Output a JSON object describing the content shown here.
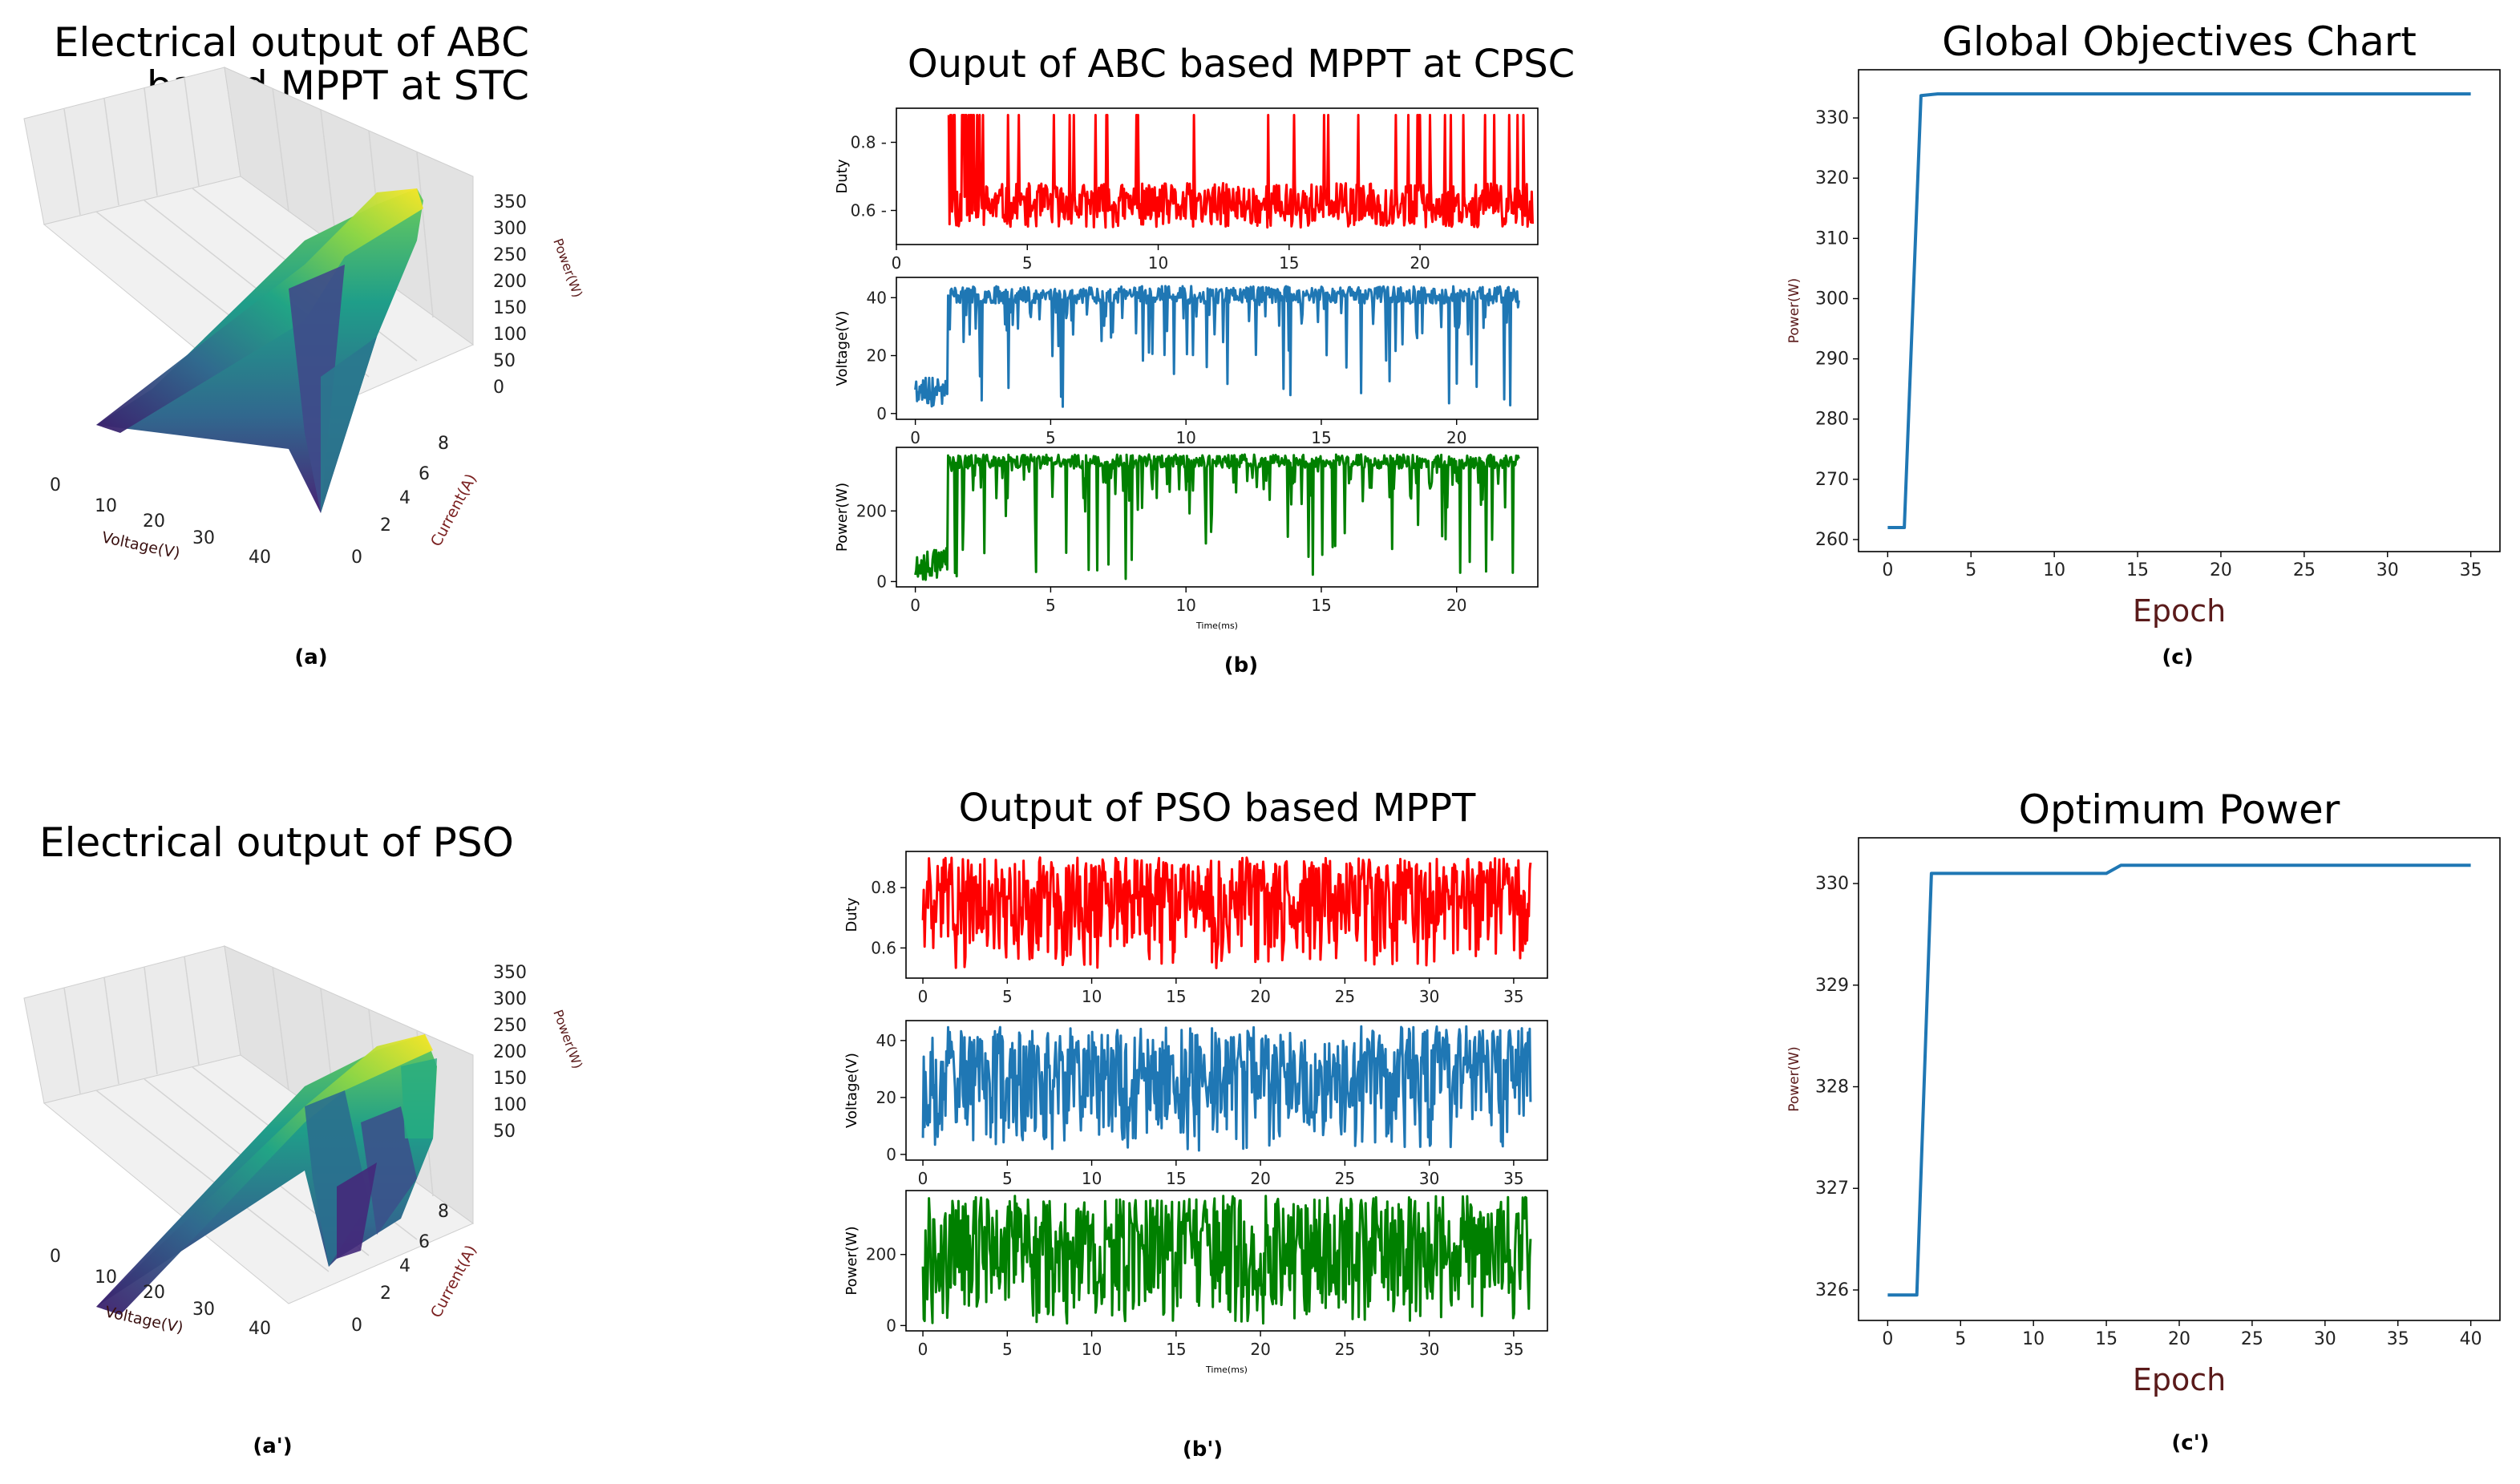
{
  "panels": {
    "a": {
      "title_line1": "Electrical output of ABC",
      "title_line2": "based MPPT at STC",
      "caption": "(a)",
      "xlabel": "Voltage(V)",
      "ylabel": "Current(A)",
      "zlabel": "Power(W)",
      "xticks": [
        "0",
        "10",
        "20",
        "30",
        "40"
      ],
      "yticks": [
        "0",
        "2",
        "4",
        "6",
        "8"
      ],
      "zticks": [
        "0",
        "50",
        "100",
        "150",
        "200",
        "250",
        "300",
        "350"
      ]
    },
    "a2": {
      "title": "Electrical output of PSO",
      "caption": "(a')",
      "xlabel": "Voltage(V)",
      "ylabel": "Current(A)",
      "zlabel": "Power(W)",
      "xticks": [
        "0",
        "10",
        "20",
        "30",
        "40"
      ],
      "yticks": [
        "0",
        "2",
        "4",
        "6",
        "8"
      ],
      "zticks": [
        "50",
        "100",
        "150",
        "200",
        "250",
        "300",
        "350"
      ]
    },
    "b": {
      "title": "Ouput of ABC based MPPT at CPSC",
      "caption": "(b)"
    },
    "b2": {
      "title": "Output of PSO based MPPT",
      "caption": "(b')"
    },
    "c": {
      "caption": "(c)"
    },
    "c2": {
      "caption": "(c')"
    }
  },
  "chart_data": [
    {
      "id": "b-duty",
      "type": "line",
      "title": "",
      "xlabel": "",
      "ylabel": "Duty",
      "xlim": [
        0,
        24.5
      ],
      "ylim": [
        0.5,
        0.9
      ],
      "xticks": [
        0,
        5,
        10,
        15,
        20
      ],
      "yticks": [
        0.6,
        0.8
      ],
      "ytick_labels": [
        "0.6 -",
        "0.8 -"
      ],
      "xtick_labels": [
        "0",
        "5",
        "10",
        "15",
        "20"
      ],
      "color": "#ff0000",
      "series_model": {
        "t_start": 2.0,
        "t_end": 24.3,
        "base_low": 0.55,
        "base_high": 0.68,
        "spike": 0.88,
        "seed": 11
      }
    },
    {
      "id": "b-voltage",
      "type": "line",
      "title": "",
      "xlabel": "",
      "ylabel": "Voltage(V)",
      "xlim": [
        -0.7,
        23.0
      ],
      "ylim": [
        -2,
        47
      ],
      "xticks": [
        0,
        5,
        10,
        15,
        20
      ],
      "yticks": [
        0,
        20,
        40
      ],
      "xtick_labels": [
        "0",
        "5",
        "10",
        "15",
        "20"
      ],
      "ytick_labels": [
        "0",
        "20",
        "40"
      ],
      "color": "#1f77b4",
      "series_model": {
        "t_start": 0.0,
        "t_end": 22.3,
        "base_low": 38,
        "base_high": 44,
        "dip_min": 2,
        "seed": 23
      }
    },
    {
      "id": "b-power",
      "type": "line",
      "title": "",
      "xlabel": "Time(ms)",
      "ylabel": "Power(W)",
      "xlim": [
        -0.7,
        23.0
      ],
      "ylim": [
        -15,
        380
      ],
      "xticks": [
        0,
        5,
        10,
        15,
        20
      ],
      "yticks": [
        0,
        200
      ],
      "xtick_labels": [
        "0",
        "5",
        "10",
        "15",
        "20"
      ],
      "ytick_labels": [
        "0",
        "200"
      ],
      "color": "#008000",
      "series_model": {
        "t_start": 0.0,
        "t_end": 22.3,
        "base_low": 320,
        "base_high": 360,
        "dip_min": 5,
        "seed": 37
      }
    },
    {
      "id": "b2-duty",
      "type": "line",
      "title": "",
      "xlabel": "",
      "ylabel": "Duty",
      "xlim": [
        -1.0,
        37.0
      ],
      "ylim": [
        0.5,
        0.92
      ],
      "xticks": [
        0,
        5,
        10,
        15,
        20,
        25,
        30,
        35
      ],
      "yticks": [
        0.6,
        0.8
      ],
      "xtick_labels": [
        "0",
        "5",
        "10",
        "15",
        "20",
        "25",
        "30",
        "35"
      ],
      "ytick_labels": [
        "0.6",
        "0.8"
      ],
      "color": "#ff0000",
      "series_model": {
        "t_start": 0.0,
        "t_end": 36.0,
        "min": 0.53,
        "max": 0.9,
        "seed": 41
      }
    },
    {
      "id": "b2-voltage",
      "type": "line",
      "title": "",
      "xlabel": "",
      "ylabel": "Voltage(V)",
      "xlim": [
        -1.0,
        37.0
      ],
      "ylim": [
        -2,
        47
      ],
      "xticks": [
        0,
        5,
        10,
        15,
        20,
        25,
        30,
        35
      ],
      "yticks": [
        0,
        20,
        40
      ],
      "xtick_labels": [
        "0",
        "5",
        "10",
        "15",
        "20",
        "25",
        "30",
        "35"
      ],
      "ytick_labels": [
        "0",
        "20",
        "40"
      ],
      "color": "#1f77b4",
      "series_model": {
        "t_start": 0.0,
        "t_end": 36.0,
        "min": 1,
        "max": 45,
        "seed": 53
      }
    },
    {
      "id": "b2-power",
      "type": "line",
      "title": "",
      "xlabel": "Time(ms)",
      "ylabel": "Power(W)",
      "xlim": [
        -1.0,
        37.0
      ],
      "ylim": [
        -15,
        380
      ],
      "xticks": [
        0,
        5,
        10,
        15,
        20,
        25,
        30,
        35
      ],
      "yticks": [
        0,
        200
      ],
      "xtick_labels": [
        "0",
        "5",
        "10",
        "15",
        "20",
        "25",
        "30",
        "35"
      ],
      "ytick_labels": [
        "0",
        "200"
      ],
      "color": "#008000",
      "series_model": {
        "t_start": 0.0,
        "t_end": 36.0,
        "min": 5,
        "max": 365,
        "seed": 67
      }
    },
    {
      "id": "c",
      "type": "line",
      "title": "Global Objectives Chart",
      "xlabel": "Epoch",
      "ylabel": "Power(W)",
      "xlim": [
        -1.75,
        36.75
      ],
      "ylim": [
        258,
        338
      ],
      "xticks": [
        0,
        5,
        10,
        15,
        20,
        25,
        30,
        35
      ],
      "yticks": [
        260,
        270,
        280,
        290,
        300,
        310,
        320,
        330
      ],
      "xtick_labels": [
        "0",
        "5",
        "10",
        "15",
        "20",
        "25",
        "30",
        "35"
      ],
      "ytick_labels": [
        "260",
        "270",
        "280",
        "290",
        "300",
        "310",
        "320",
        "330"
      ],
      "color": "#1f77b4",
      "x": [
        0,
        1,
        2,
        3,
        35
      ],
      "y": [
        262,
        262,
        333.7,
        334,
        334
      ]
    },
    {
      "id": "c2",
      "type": "line",
      "title": "Optimum Power",
      "xlabel": "Epoch",
      "ylabel": "Power(W)",
      "xlim": [
        -2,
        42
      ],
      "ylim": [
        325.7,
        330.45
      ],
      "xticks": [
        0,
        5,
        10,
        15,
        20,
        25,
        30,
        35,
        40
      ],
      "yticks": [
        326,
        327,
        328,
        329,
        330
      ],
      "xtick_labels": [
        "0",
        "5",
        "10",
        "15",
        "20",
        "25",
        "30",
        "35",
        "40"
      ],
      "ytick_labels": [
        "326",
        "327",
        "328",
        "329",
        "330"
      ],
      "color": "#1f77b4",
      "x": [
        0,
        2,
        3,
        15,
        16,
        40
      ],
      "y": [
        325.95,
        325.95,
        330.1,
        330.1,
        330.18,
        330.18
      ]
    }
  ]
}
